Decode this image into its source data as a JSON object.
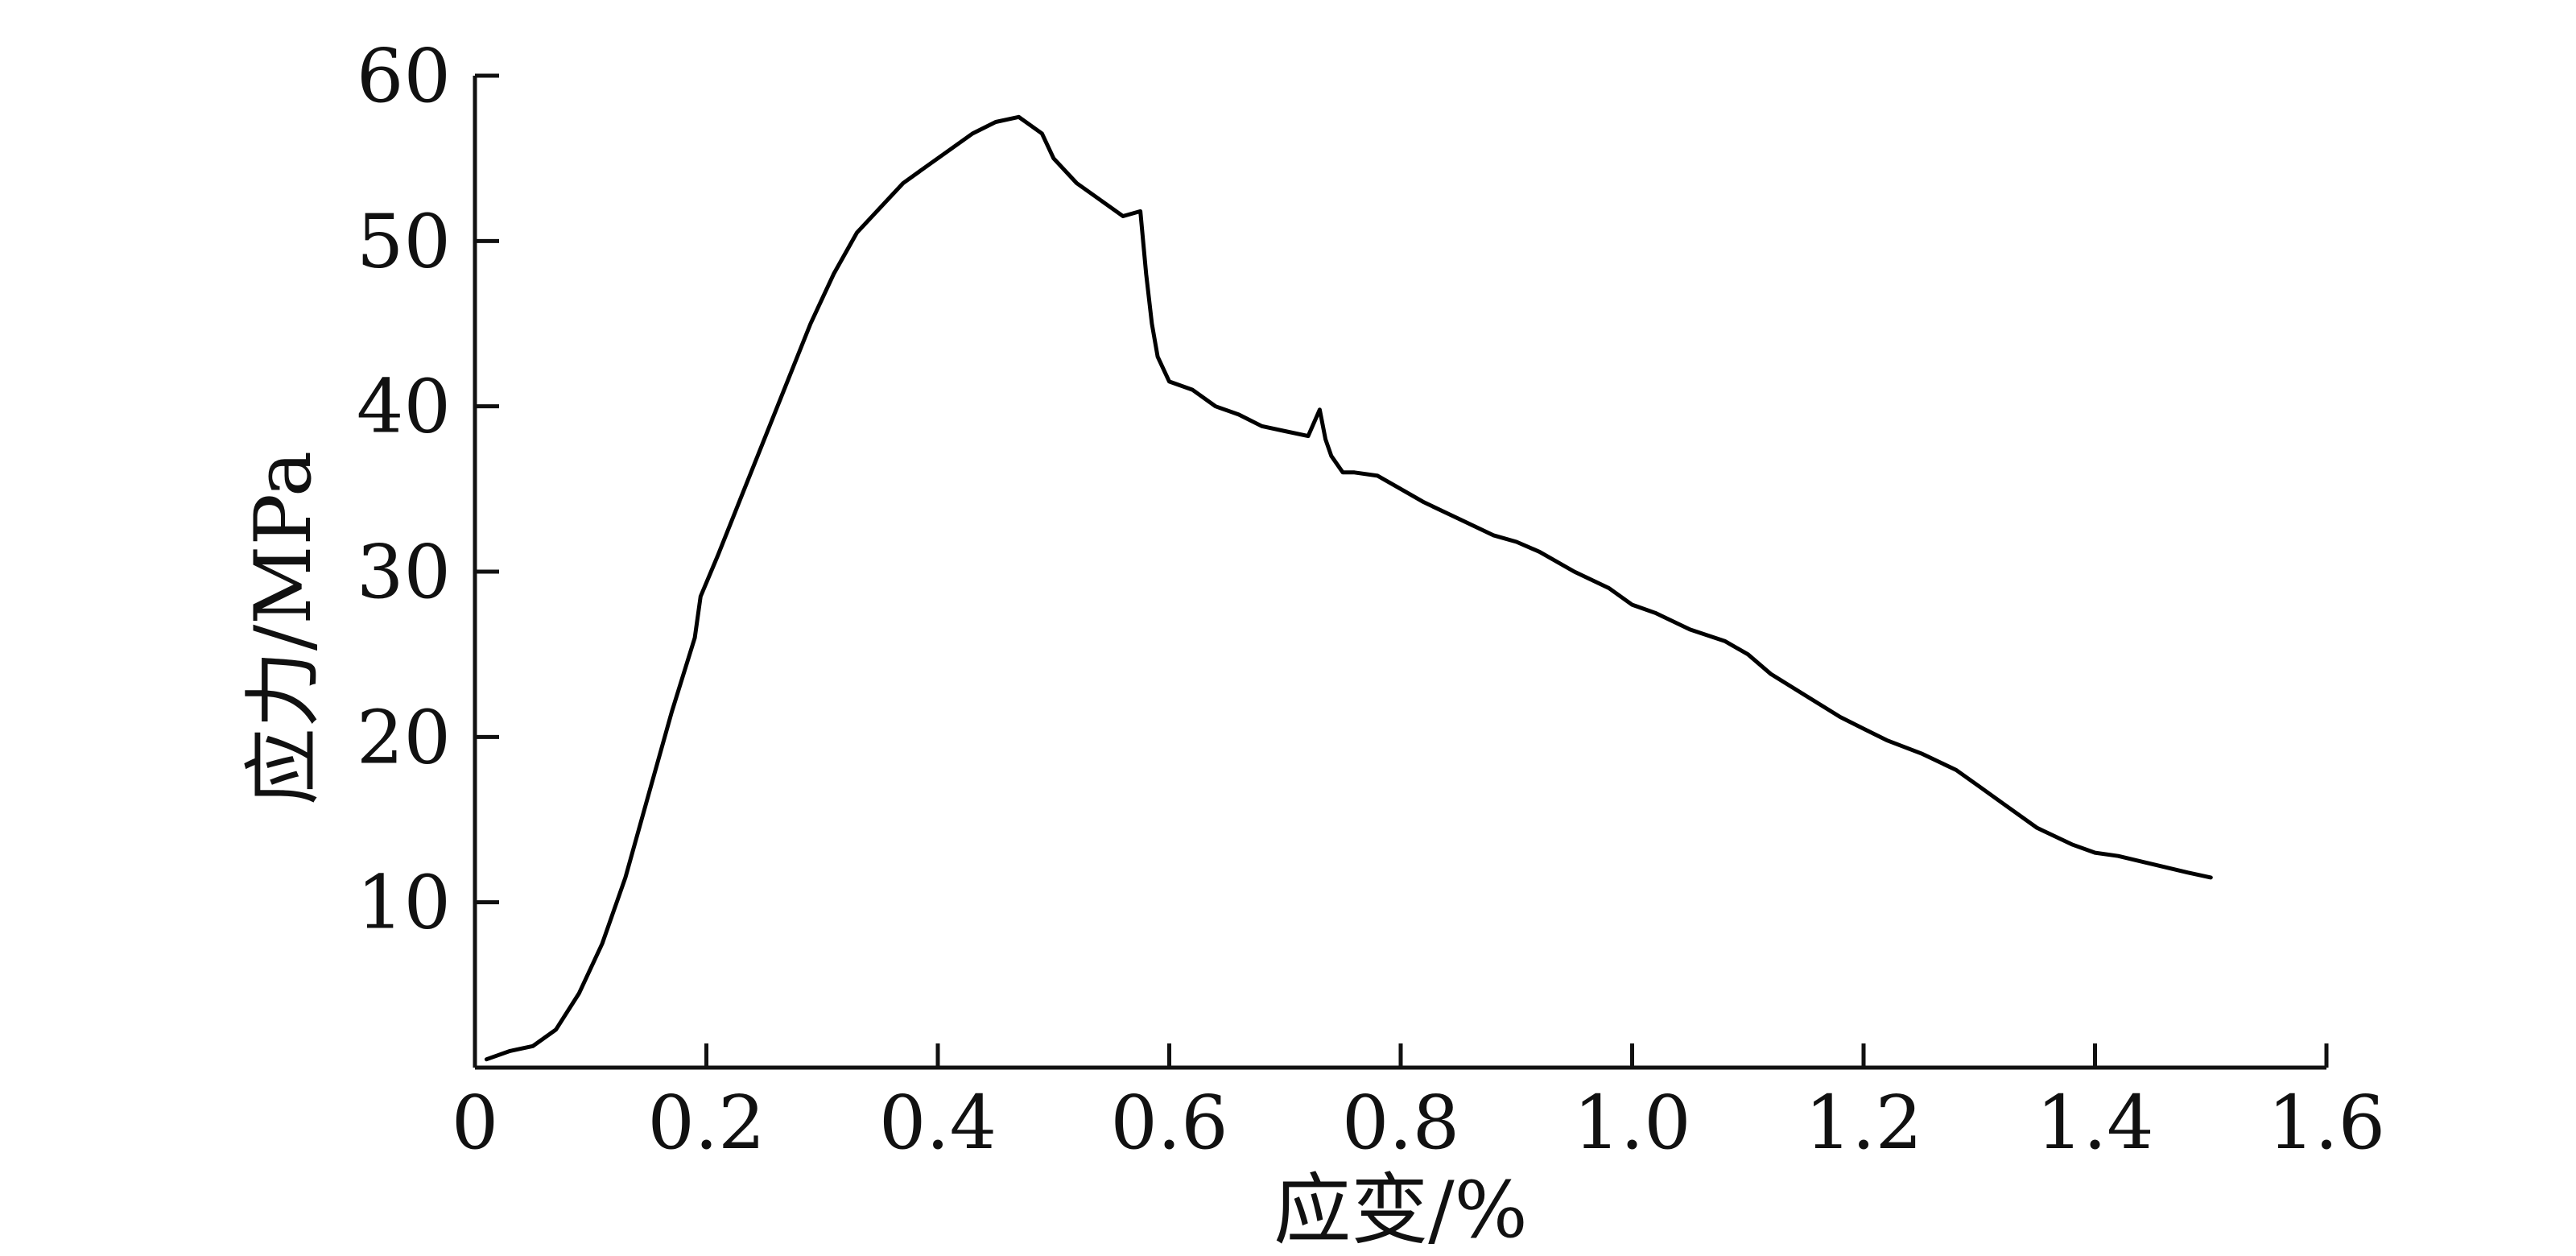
{
  "chart_data": {
    "type": "line",
    "title": "",
    "xlabel": "应变/%",
    "ylabel": "应力/MPa",
    "xlim": [
      0,
      1.6
    ],
    "ylim": [
      0,
      60
    ],
    "grid": false,
    "x_ticks": [
      0,
      0.2,
      0.4,
      0.6,
      0.8,
      1.0,
      1.2,
      1.4,
      1.6
    ],
    "x_tick_labels": [
      "0",
      "0.2",
      "0.4",
      "0.6",
      "0.8",
      "1.0",
      "1.2",
      "1.4",
      "1.6"
    ],
    "y_ticks": [
      10,
      20,
      30,
      40,
      50,
      60
    ],
    "y_tick_labels": [
      "10",
      "20",
      "30",
      "40",
      "50",
      "60"
    ],
    "series": [
      {
        "color": "#000000",
        "x": [
          0.01,
          0.03,
          0.05,
          0.07,
          0.09,
          0.11,
          0.13,
          0.15,
          0.17,
          0.19,
          0.195,
          0.21,
          0.23,
          0.25,
          0.27,
          0.29,
          0.31,
          0.33,
          0.35,
          0.37,
          0.39,
          0.41,
          0.43,
          0.45,
          0.47,
          0.49,
          0.5,
          0.52,
          0.54,
          0.56,
          0.575,
          0.58,
          0.585,
          0.59,
          0.6,
          0.62,
          0.64,
          0.66,
          0.68,
          0.7,
          0.72,
          0.73,
          0.735,
          0.74,
          0.75,
          0.76,
          0.78,
          0.8,
          0.82,
          0.85,
          0.88,
          0.9,
          0.92,
          0.95,
          0.98,
          1.0,
          1.02,
          1.05,
          1.08,
          1.1,
          1.12,
          1.15,
          1.18,
          1.2,
          1.22,
          1.25,
          1.28,
          1.3,
          1.32,
          1.35,
          1.38,
          1.4,
          1.42,
          1.45,
          1.48,
          1.5
        ],
        "y": [
          0.5,
          1.0,
          1.3,
          2.3,
          4.5,
          7.5,
          11.5,
          16.5,
          21.5,
          26,
          28.5,
          31,
          34.5,
          38,
          41.5,
          45,
          48,
          50.5,
          52,
          53.5,
          54.5,
          55.5,
          56.5,
          57.2,
          57.5,
          56.5,
          55,
          53.5,
          52.5,
          51.5,
          51.8,
          48,
          45,
          43,
          41.5,
          41,
          40,
          39.5,
          38.8,
          38.5,
          38.2,
          39.8,
          38,
          37,
          36,
          36,
          35.8,
          35,
          34.2,
          33.2,
          32.2,
          31.8,
          31.2,
          30,
          29,
          28,
          27.5,
          26.5,
          25.8,
          25,
          23.8,
          22.5,
          21.2,
          20.5,
          19.8,
          19,
          18,
          17,
          16,
          14.5,
          13.5,
          13,
          12.8,
          12.3,
          11.8,
          11.5
        ]
      }
    ]
  }
}
